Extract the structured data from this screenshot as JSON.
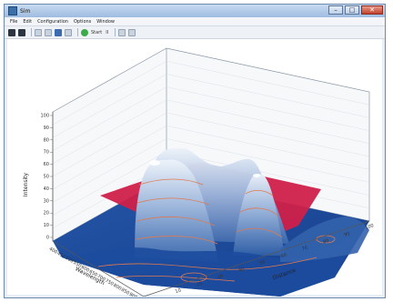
{
  "window": {
    "title": "Sim",
    "minimize": "–",
    "maximize": "□",
    "close": "✕"
  },
  "menu": [
    "File",
    "Edit",
    "Configuration",
    "Options",
    "Window"
  ],
  "toolbar": {
    "icons": [
      "save-icon",
      "print-icon",
      "zoom-icon",
      "rotate-icon",
      "pan-icon",
      "reset-icon"
    ],
    "run_label": "Start",
    "pause_label": "II"
  },
  "plot": {
    "surface_colors": {
      "low": "#1e4fa0",
      "mid": "#5d86c2",
      "high": "#dfe8f4",
      "plane": "#d0204a",
      "contour": "#e07a4f"
    },
    "z_ticks": [
      "100",
      "90",
      "80",
      "70",
      "60",
      "50",
      "40",
      "30",
      "20",
      "10",
      "0"
    ],
    "x_ticks": [
      "400",
      "450",
      "500",
      "550",
      "600",
      "650",
      "700",
      "750",
      "800",
      "850",
      "900"
    ],
    "y_ticks": [
      "0",
      "10",
      "20",
      "30",
      "40",
      "50",
      "60",
      "70",
      "80",
      "90",
      "100"
    ],
    "x_label": "Wavelength",
    "y_label": "Distance",
    "z_label": "Intensity"
  }
}
